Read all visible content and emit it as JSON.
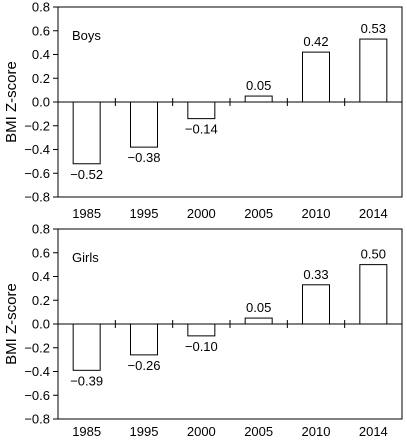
{
  "chart_data": [
    {
      "type": "bar",
      "title": "Boys",
      "ylabel": "BMI Z-score",
      "categories": [
        "1985",
        "1995",
        "2000",
        "2005",
        "2010",
        "2014"
      ],
      "values": [
        -0.52,
        -0.38,
        -0.14,
        0.05,
        0.42,
        0.53
      ],
      "value_labels": [
        "−0.52",
        "−0.38",
        "−0.14",
        "0.05",
        "0.42",
        "0.53"
      ],
      "ylim": [
        -0.8,
        0.8
      ],
      "yticks": [
        0.8,
        0.6,
        0.4,
        0.2,
        0.0,
        -0.2,
        -0.4,
        -0.6,
        -0.8
      ],
      "ytick_labels": [
        "0.8",
        "0.6",
        "0.4",
        "0.2",
        "0.0",
        "−0.2",
        "−0.4",
        "−0.6",
        "−0.8"
      ],
      "grid": false
    },
    {
      "type": "bar",
      "title": "Girls",
      "ylabel": "BMI Z-score",
      "categories": [
        "1985",
        "1995",
        "2000",
        "2005",
        "2010",
        "2014"
      ],
      "values": [
        -0.39,
        -0.26,
        -0.1,
        0.05,
        0.33,
        0.5
      ],
      "value_labels": [
        "−0.39",
        "−0.26",
        "−0.10",
        "0.05",
        "0.33",
        "0.50"
      ],
      "ylim": [
        -0.8,
        0.8
      ],
      "yticks": [
        0.8,
        0.6,
        0.4,
        0.2,
        0.0,
        -0.2,
        -0.4,
        -0.6,
        -0.8
      ],
      "ytick_labels": [
        "0.8",
        "0.6",
        "0.4",
        "0.2",
        "0.0",
        "−0.2",
        "−0.4",
        "−0.6",
        "−0.8"
      ],
      "grid": false
    }
  ],
  "colors": {
    "bar_fill": "#ffffff",
    "stroke": "#000000"
  }
}
